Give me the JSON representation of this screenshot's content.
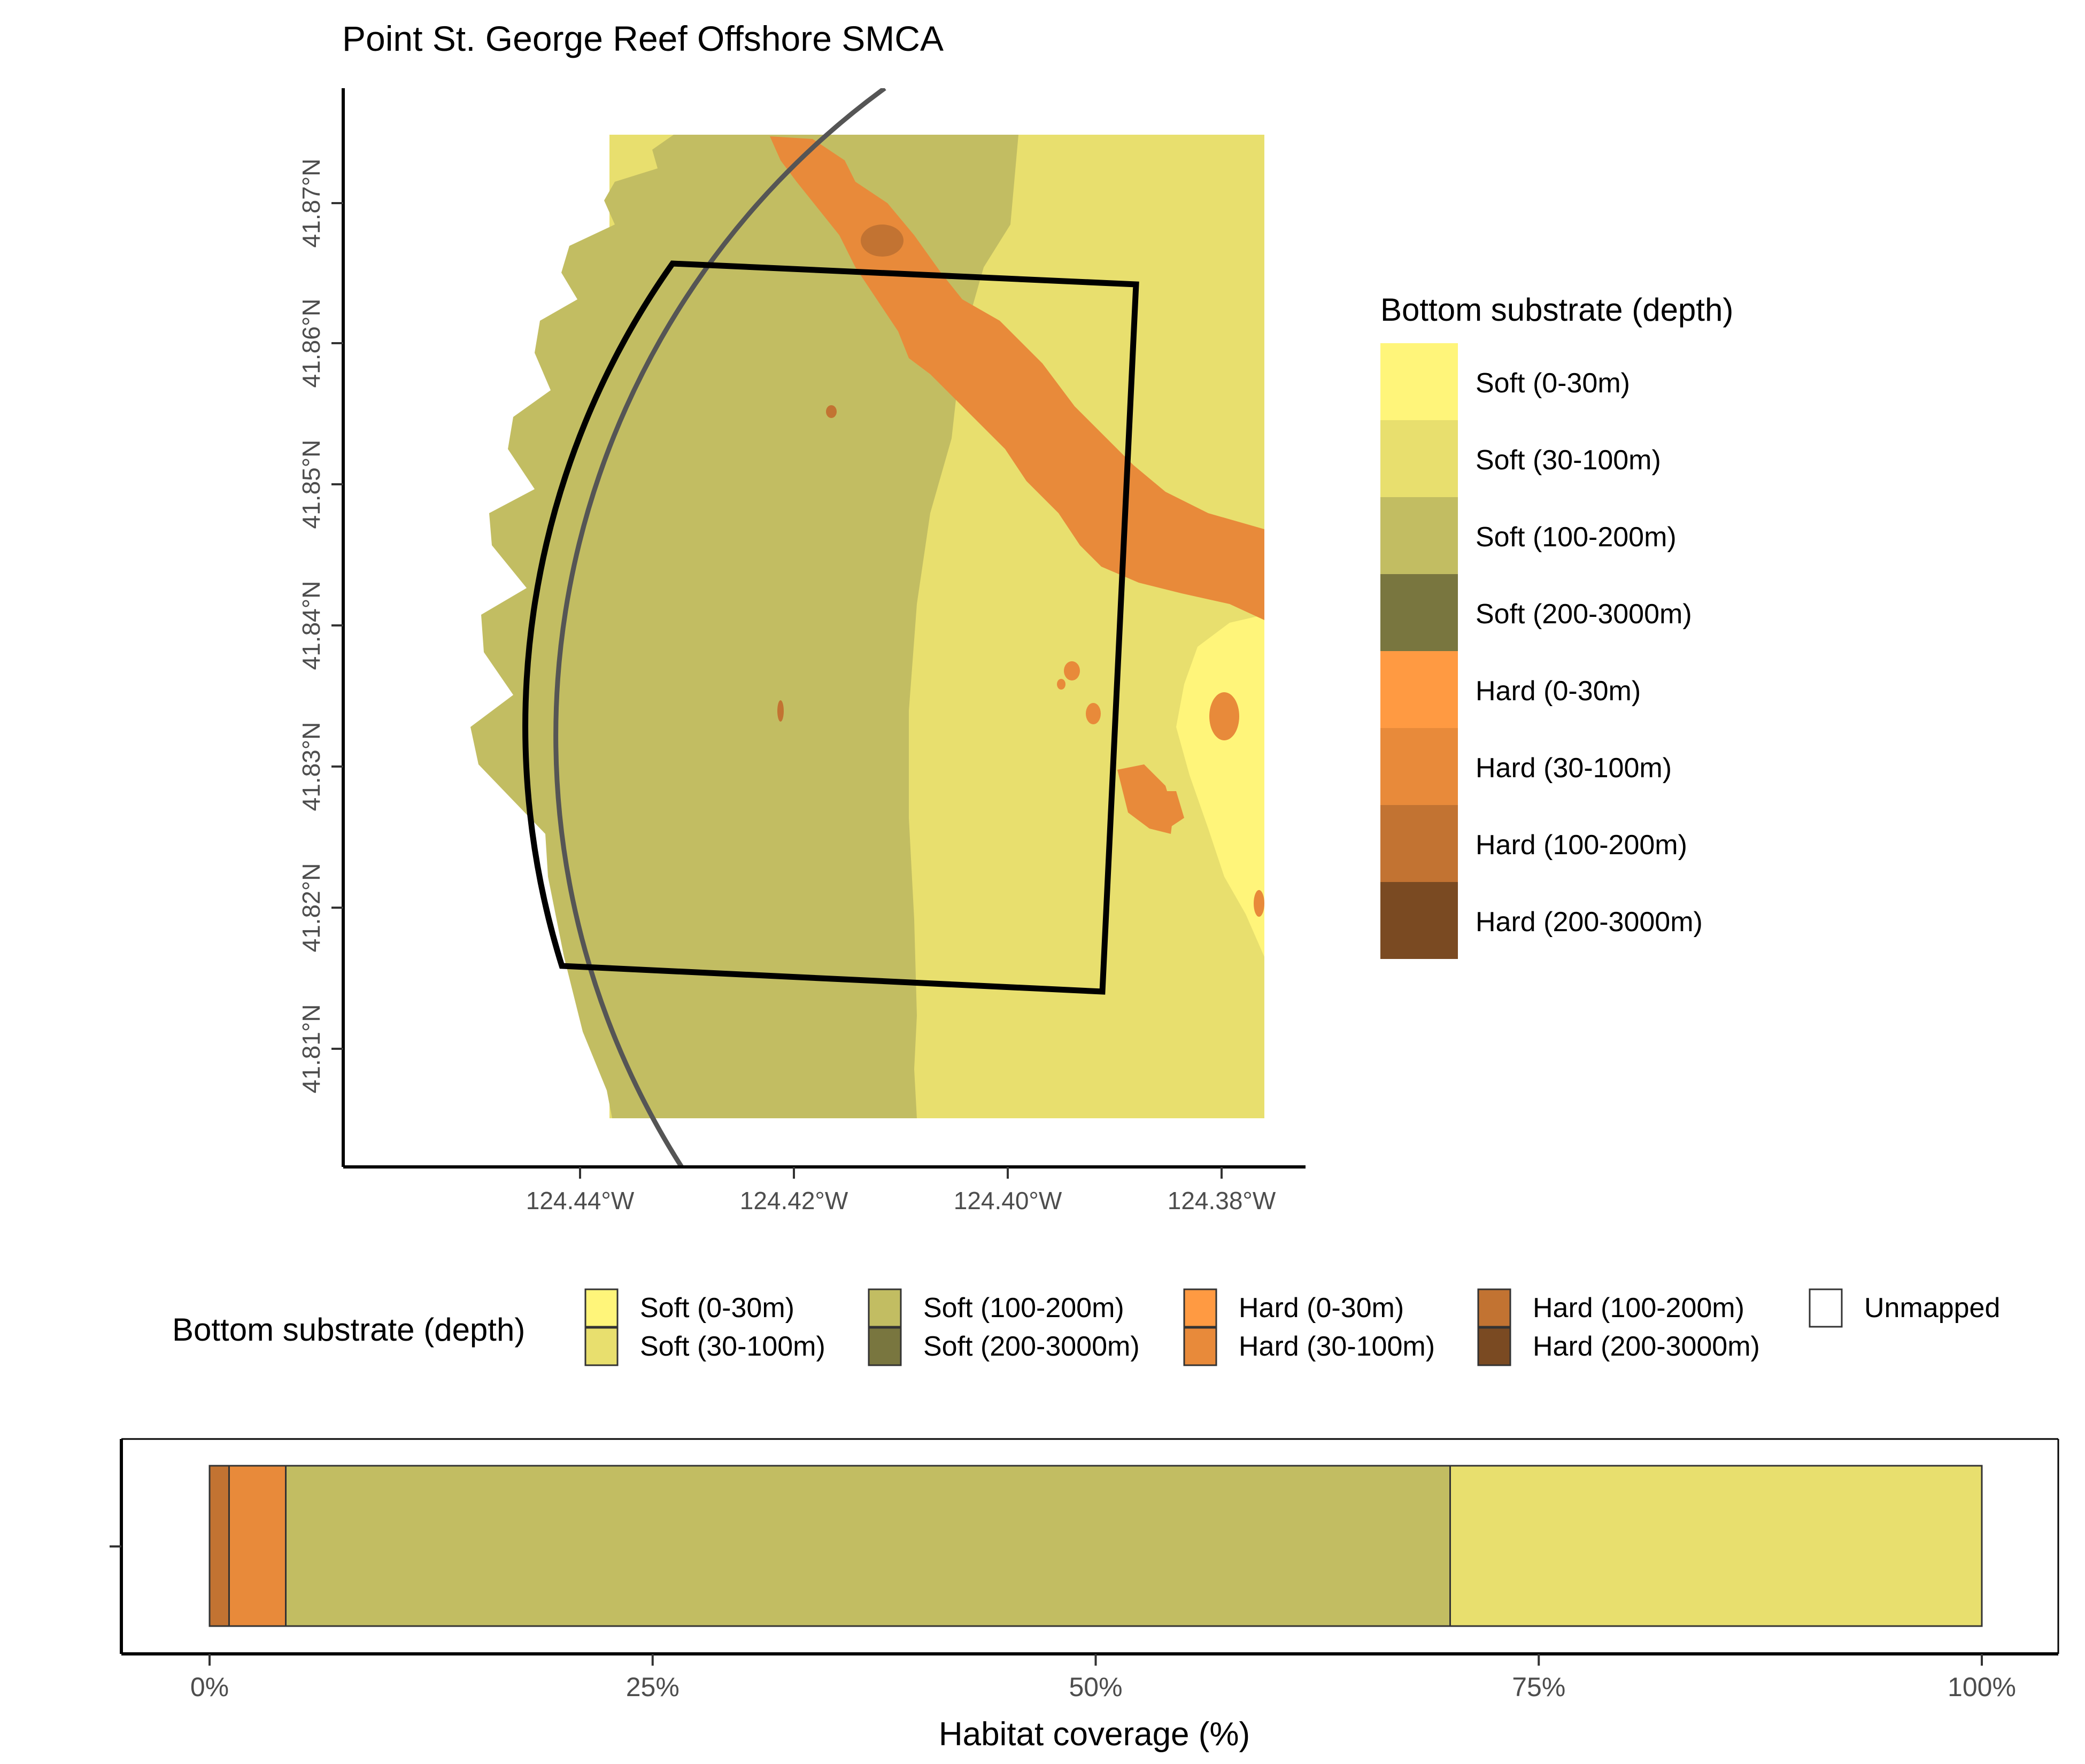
{
  "title": "Point St. George Reef Offshore SMCA",
  "colors": {
    "soft_0_30": "#FFF57A",
    "soft_30_100": "#E8DF6E",
    "soft_100_200": "#C2BD62",
    "soft_200_3000": "#79763F",
    "hard_0_30": "#FF9A42",
    "hard_30_100": "#E88A3A",
    "hard_100_200": "#C27332",
    "hard_200_3000": "#7A4A22",
    "unmapped": "#FFFFFF",
    "boundary": "#000000",
    "arc_line": "#555555"
  },
  "map": {
    "lon_ticks": [
      "124.44°W",
      "124.42°W",
      "124.40°W",
      "124.38°W"
    ],
    "lat_ticks": [
      "41.87°N",
      "41.86°N",
      "41.85°N",
      "41.84°N",
      "41.83°N",
      "41.82°N",
      "41.81°N"
    ]
  },
  "map_legend": {
    "title": "Bottom substrate (depth)",
    "items": [
      {
        "label": "Soft (0-30m)",
        "color_key": "soft_0_30"
      },
      {
        "label": "Soft (30-100m)",
        "color_key": "soft_30_100"
      },
      {
        "label": "Soft (100-200m)",
        "color_key": "soft_100_200"
      },
      {
        "label": "Soft (200-3000m)",
        "color_key": "soft_200_3000"
      },
      {
        "label": "Hard (0-30m)",
        "color_key": "hard_0_30"
      },
      {
        "label": "Hard (30-100m)",
        "color_key": "hard_30_100"
      },
      {
        "label": "Hard (100-200m)",
        "color_key": "hard_100_200"
      },
      {
        "label": "Hard (200-3000m)",
        "color_key": "hard_200_3000"
      }
    ]
  },
  "bar_legend": {
    "title": "Bottom substrate (depth)",
    "items": [
      {
        "label": "Soft (0-30m)",
        "color_key": "soft_0_30"
      },
      {
        "label": "Soft (30-100m)",
        "color_key": "soft_30_100"
      },
      {
        "label": "Soft (100-200m)",
        "color_key": "soft_100_200"
      },
      {
        "label": "Soft (200-3000m)",
        "color_key": "soft_200_3000"
      },
      {
        "label": "Hard (0-30m)",
        "color_key": "hard_0_30"
      },
      {
        "label": "Hard (30-100m)",
        "color_key": "hard_30_100"
      },
      {
        "label": "Hard (100-200m)",
        "color_key": "hard_100_200"
      },
      {
        "label": "Hard (200-3000m)",
        "color_key": "hard_200_3000"
      },
      {
        "label": "Unmapped",
        "color_key": "unmapped"
      }
    ]
  },
  "chart_data": {
    "type": "bar",
    "orientation": "horizontal",
    "stacked": true,
    "xlabel": "Habitat coverage (%)",
    "ylabel": "",
    "xlim": [
      0,
      100
    ],
    "x_ticks": [
      "0%",
      "25%",
      "50%",
      "75%",
      "100%"
    ],
    "segments": [
      {
        "name": "Hard (100-200m)",
        "value": 1.1,
        "color_key": "hard_100_200"
      },
      {
        "name": "Hard (30-100m)",
        "value": 3.2,
        "color_key": "hard_30_100"
      },
      {
        "name": "Soft (100-200m)",
        "value": 65.7,
        "color_key": "soft_100_200"
      },
      {
        "name": "Soft (30-100m)",
        "value": 30.0,
        "color_key": "soft_30_100"
      }
    ]
  }
}
